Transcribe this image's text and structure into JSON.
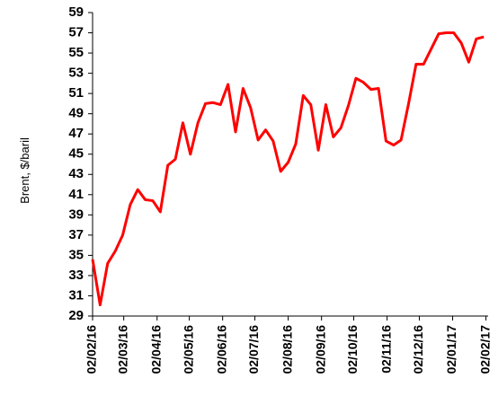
{
  "chart_data": {
    "type": "line",
    "y_label": "Brent, $/baril",
    "x": [
      "2016-02-02",
      "2016-02-09",
      "2016-02-16",
      "2016-02-23",
      "2016-03-01",
      "2016-03-08",
      "2016-03-15",
      "2016-03-22",
      "2016-03-29",
      "2016-04-05",
      "2016-04-12",
      "2016-04-19",
      "2016-04-26",
      "2016-05-03",
      "2016-05-10",
      "2016-05-17",
      "2016-05-24",
      "2016-05-31",
      "2016-06-07",
      "2016-06-14",
      "2016-06-21",
      "2016-06-28",
      "2016-07-05",
      "2016-07-12",
      "2016-07-19",
      "2016-07-26",
      "2016-08-02",
      "2016-08-09",
      "2016-08-16",
      "2016-08-23",
      "2016-08-30",
      "2016-09-06",
      "2016-09-13",
      "2016-09-20",
      "2016-09-27",
      "2016-10-04",
      "2016-10-11",
      "2016-10-18",
      "2016-10-25",
      "2016-11-01",
      "2016-11-08",
      "2016-11-15",
      "2016-11-22",
      "2016-11-29",
      "2016-12-06",
      "2016-12-13",
      "2016-12-20",
      "2016-12-27",
      "2017-01-03",
      "2017-01-10",
      "2017-01-17",
      "2017-01-24",
      "2017-01-31"
    ],
    "series": [
      {
        "name": "Brent",
        "color": "#ff0000",
        "values": [
          34.6,
          30.1,
          34.2,
          35.4,
          37.0,
          40.0,
          41.5,
          40.5,
          40.4,
          39.3,
          43.9,
          44.5,
          48.1,
          45.0,
          48.1,
          50.0,
          50.1,
          49.9,
          51.9,
          47.2,
          51.5,
          49.6,
          46.4,
          47.4,
          46.3,
          43.3,
          44.2,
          46.0,
          50.8,
          49.9,
          45.4,
          49.9,
          46.7,
          47.6,
          49.8,
          52.5,
          52.1,
          51.4,
          51.5,
          46.3,
          45.9,
          46.4,
          50.0,
          53.9,
          53.9,
          55.4,
          56.9,
          57.0,
          57.0,
          56.0,
          54.1,
          56.4,
          56.6
        ]
      }
    ],
    "xlim": [
      "2016-02-02",
      "2017-02-04"
    ],
    "xticks": [
      {
        "value": "2016-02-02",
        "label": "02/02/16"
      },
      {
        "value": "2016-03-02",
        "label": "02/03/16"
      },
      {
        "value": "2016-04-02",
        "label": "02/04/16"
      },
      {
        "value": "2016-05-02",
        "label": "02/05/16"
      },
      {
        "value": "2016-06-02",
        "label": "02/06/16"
      },
      {
        "value": "2016-07-02",
        "label": "02/07/16"
      },
      {
        "value": "2016-08-02",
        "label": "02/08/16"
      },
      {
        "value": "2016-09-02",
        "label": "02/09/16"
      },
      {
        "value": "2016-10-02",
        "label": "02/10/16"
      },
      {
        "value": "2016-11-02",
        "label": "02/11/16"
      },
      {
        "value": "2016-12-02",
        "label": "02/12/16"
      },
      {
        "value": "2017-01-02",
        "label": "02/01/17"
      },
      {
        "value": "2017-02-02",
        "label": "02/02/17"
      }
    ],
    "ylim": [
      29,
      59
    ],
    "yticks": [
      29,
      31,
      33,
      35,
      37,
      39,
      41,
      43,
      45,
      47,
      49,
      51,
      53,
      55,
      57,
      59
    ],
    "grid": false
  }
}
